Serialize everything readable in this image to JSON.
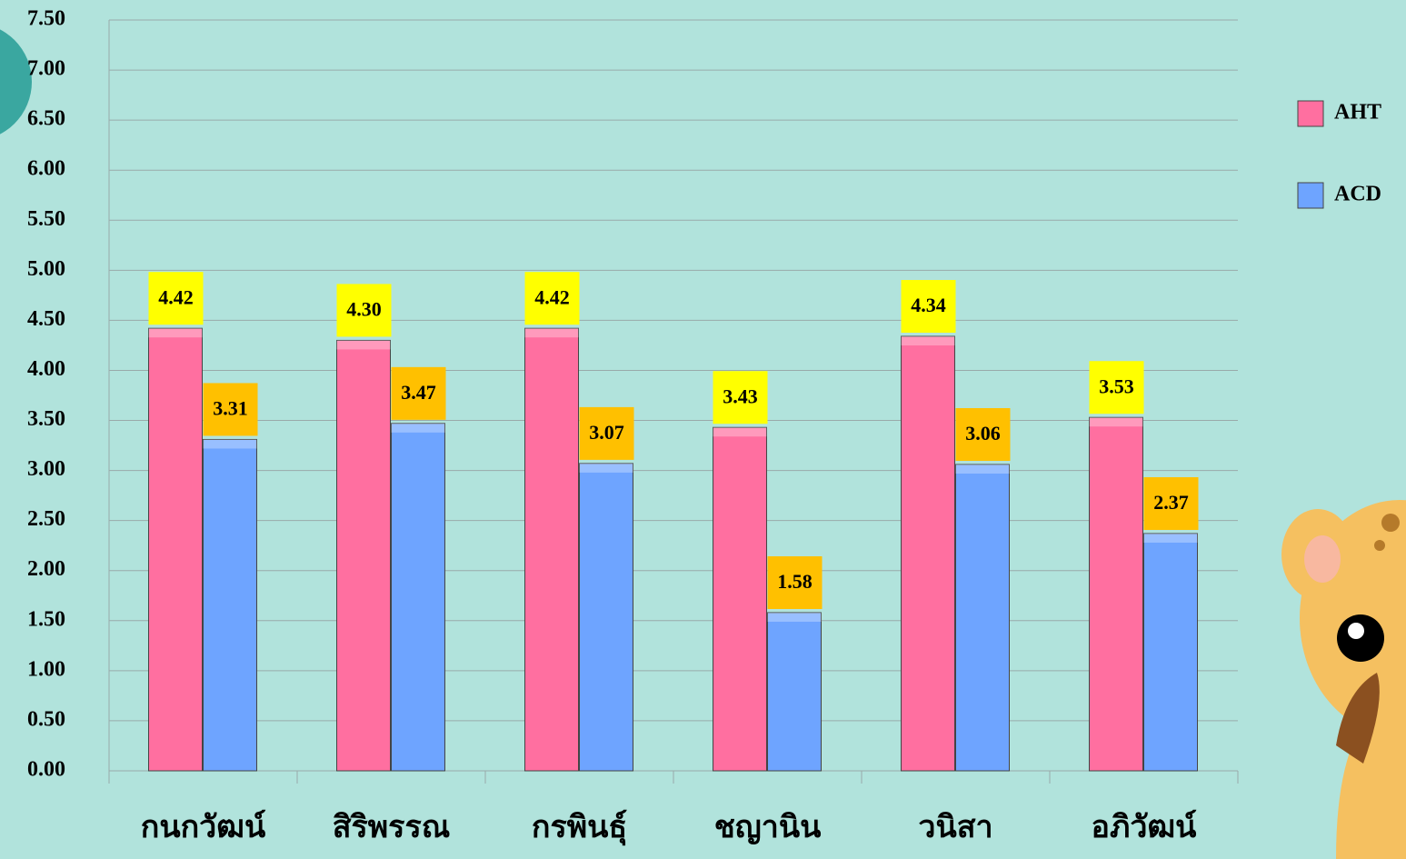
{
  "chart_data": {
    "type": "bar",
    "categories": [
      "กนกวัฒน์",
      "สิริพรรณ",
      "กรพินธุ์",
      "ชญานิน",
      "วนิสา",
      "อภิวัฒน์"
    ],
    "series": [
      {
        "name": "AHT",
        "color": "#ff6fa0",
        "label_color": "#ffff00",
        "values": [
          4.42,
          4.3,
          4.42,
          3.43,
          4.34,
          3.53
        ],
        "value_labels": [
          "4.42",
          "4.30",
          "4.42",
          "3.43",
          "4.34",
          "3.53"
        ]
      },
      {
        "name": "ACD",
        "color": "#6ea4ff",
        "label_color": "#ffc000",
        "values": [
          3.31,
          3.47,
          3.07,
          1.58,
          3.06,
          2.37
        ],
        "value_labels": [
          "3.31",
          "3.47",
          "3.07",
          "1.58",
          "3.06",
          "2.37"
        ]
      }
    ],
    "ylim": [
      0,
      7.5
    ],
    "yticks": [
      {
        "value": 0,
        "label": "0.00"
      },
      {
        "value": 0.5,
        "label": "0.50"
      },
      {
        "value": 1,
        "label": "1.00"
      },
      {
        "value": 1.5,
        "label": "1.50"
      },
      {
        "value": 2,
        "label": "2.00"
      },
      {
        "value": 2.5,
        "label": "2.50"
      },
      {
        "value": 3,
        "label": "3.00"
      },
      {
        "value": 3.5,
        "label": "3.50"
      },
      {
        "value": 4,
        "label": "4.00"
      },
      {
        "value": 4.5,
        "label": "4.50"
      },
      {
        "value": 5,
        "label": "5.00"
      },
      {
        "value": 5.5,
        "label": "5.50"
      },
      {
        "value": 6,
        "label": "6.00"
      },
      {
        "value": 6.5,
        "label": "6.50"
      },
      {
        "value": 7,
        "label": "7.00"
      },
      {
        "value": 7.5,
        "label": "7.50"
      }
    ],
    "grid": true,
    "legend": "right"
  }
}
